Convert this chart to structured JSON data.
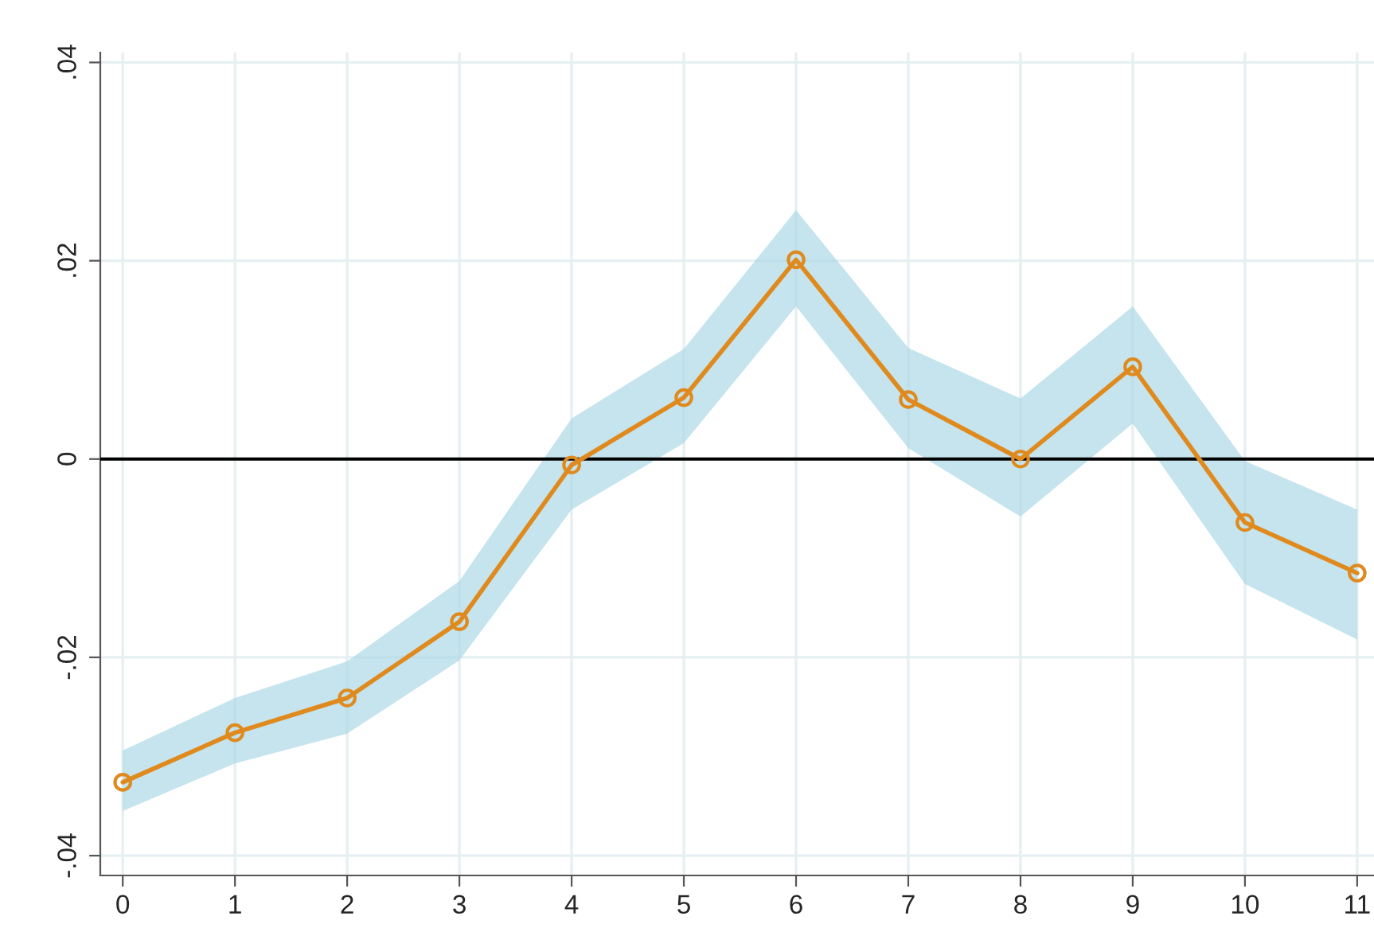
{
  "chart_data": {
    "type": "line",
    "x": [
      0,
      1,
      2,
      3,
      4,
      5,
      6,
      7,
      8,
      9,
      10,
      11
    ],
    "series": [
      {
        "color": "#e08a1e",
        "values": [
          -0.0326,
          -0.0276,
          -0.0241,
          -0.0164,
          -0.0006,
          0.0062,
          0.0201,
          0.006,
          0.0,
          0.0093,
          -0.0064,
          -0.0115
        ],
        "lower": [
          -0.0355,
          -0.0307,
          -0.0277,
          -0.0203,
          -0.0051,
          0.0016,
          0.0154,
          0.0011,
          -0.0058,
          0.0036,
          -0.0126,
          -0.0182
        ],
        "upper": [
          -0.0294,
          -0.0241,
          -0.0204,
          -0.0123,
          0.0041,
          0.0111,
          0.0251,
          0.0112,
          0.0061,
          0.0154,
          -0.0002,
          -0.0051
        ]
      }
    ],
    "xlim": [
      -0.2,
      11.15
    ],
    "ylim": [
      -0.042,
      0.041
    ],
    "xticks": [
      0,
      1,
      2,
      3,
      4,
      5,
      6,
      7,
      8,
      9,
      10,
      11
    ],
    "yticks": [
      {
        "value": -0.04,
        "label": "-.04"
      },
      {
        "value": -0.02,
        "label": "-.02"
      },
      {
        "value": 0,
        "label": "0"
      },
      {
        "value": 0.02,
        "label": ".02"
      },
      {
        "value": 0.04,
        "label": ".04"
      }
    ],
    "ref_lines": [
      {
        "axis": "y",
        "value": 0,
        "color": "#000000"
      }
    ],
    "grid": true,
    "marker": "circle",
    "line_style": "solid",
    "legend": false
  }
}
